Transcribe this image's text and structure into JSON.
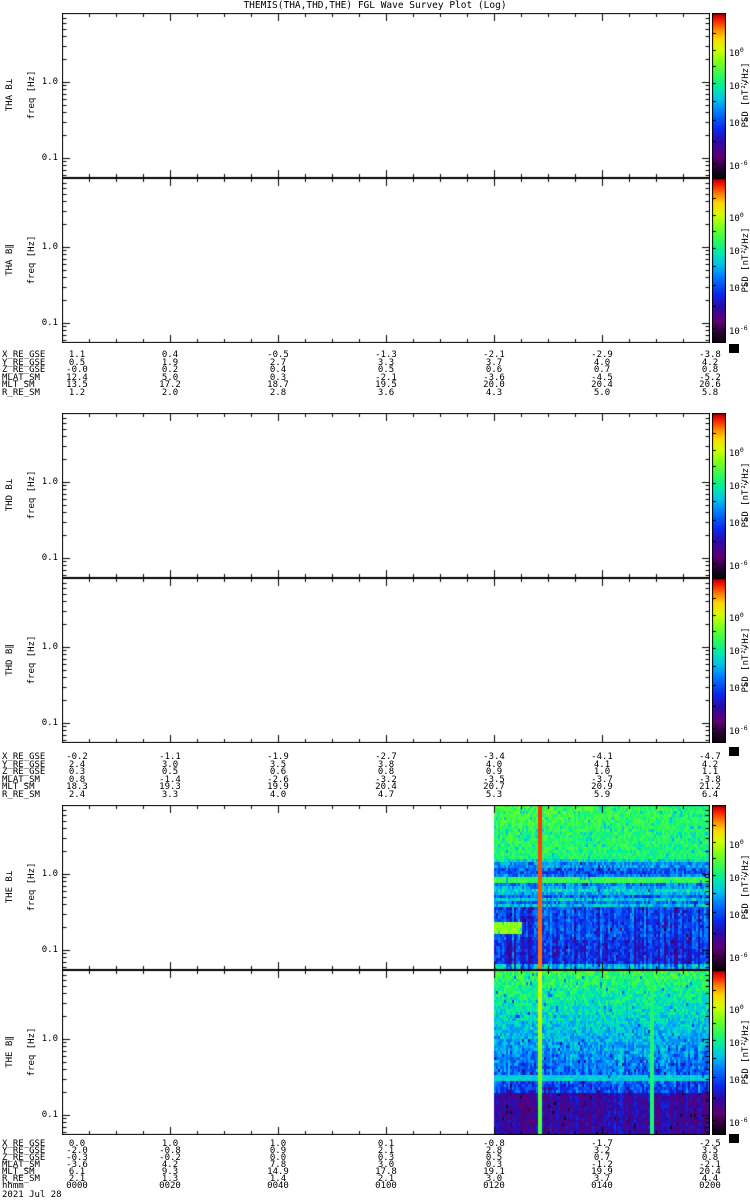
{
  "title": "THEMIS(THA,THD,THE) FGL Wave Survey Plot (Log)",
  "axis": {
    "ytick_labels": [
      "1.0",
      "0.1"
    ]
  },
  "colorbar": {
    "label": "PSD [nT²/Hz]",
    "tick_exponents": [
      "0",
      "-2",
      "-4",
      "-6"
    ]
  },
  "panels": [
    {
      "label": "THA B⊥",
      "ylabel": "freq [Hz]",
      "spectrogram": "empty"
    },
    {
      "label": "THA B∥",
      "ylabel": "freq [Hz]",
      "spectrogram": "empty"
    },
    {
      "label": "THD B⊥",
      "ylabel": "freq [Hz]",
      "spectrogram": "empty"
    },
    {
      "label": "THD B∥",
      "ylabel": "freq [Hz]",
      "spectrogram": "empty"
    },
    {
      "label": "THE B⊥",
      "ylabel": "freq [Hz]",
      "spectrogram": "bperp"
    },
    {
      "label": "THE B∥",
      "ylabel": "freq [Hz]",
      "spectrogram": "bpar"
    }
  ],
  "ephemeris": {
    "row_labels": [
      "X_RE_GSE",
      "Y_RE_GSE",
      "Z_RE_GSE",
      "MLAT_SM",
      "MLT_SM",
      "R_RE_SM"
    ],
    "time_row_label": "hhmm",
    "blocks": [
      {
        "spacecraft": "THA",
        "values": [
          [
            "1.1",
            "0.4",
            "-0.5",
            "-1.3",
            "-2.1",
            "-2.9",
            "-3.8"
          ],
          [
            "0.5",
            "1.9",
            "2.7",
            "3.3",
            "3.7",
            "4.0",
            "4.2"
          ],
          [
            "-0.0",
            "0.2",
            "0.4",
            "0.5",
            "0.6",
            "0.7",
            "0.8"
          ],
          [
            "12.4",
            "5.0",
            "0.3",
            "-2.1",
            "-3.6",
            "-4.5",
            "-5.2"
          ],
          [
            "13.5",
            "17.2",
            "18.7",
            "19.5",
            "20.0",
            "20.4",
            "20.6"
          ],
          [
            "1.2",
            "2.0",
            "2.8",
            "3.6",
            "4.3",
            "5.0",
            "5.8"
          ]
        ]
      },
      {
        "spacecraft": "THD",
        "values": [
          [
            "-0.2",
            "-1.1",
            "-1.9",
            "-2.7",
            "-3.4",
            "-4.1",
            "-4.7"
          ],
          [
            "2.4",
            "3.0",
            "3.5",
            "3.8",
            "4.0",
            "4.1",
            "4.2"
          ],
          [
            "0.3",
            "0.5",
            "0.6",
            "0.8",
            "0.9",
            "1.0",
            "1.1"
          ],
          [
            "0.8",
            "-1.4",
            "-2.6",
            "-3.2",
            "-3.5",
            "-3.7",
            "-3.8"
          ],
          [
            "18.3",
            "19.3",
            "19.9",
            "20.4",
            "20.7",
            "20.9",
            "21.2"
          ],
          [
            "2.4",
            "3.3",
            "4.0",
            "4.7",
            "5.3",
            "5.9",
            "6.4"
          ]
        ]
      },
      {
        "spacecraft": "THE",
        "values": [
          [
            "0.0",
            "1.0",
            "1.0",
            "0.1",
            "-0.8",
            "-1.7",
            "-2.5"
          ],
          [
            "-2.0",
            "-0.8",
            "0.9",
            "2.1",
            "2.8",
            "3.2",
            "3.5"
          ],
          [
            "-0.3",
            "-0.2",
            "0.0",
            "0.3",
            "0.5",
            "0.7",
            "0.8"
          ],
          [
            "-3.6",
            "4.2",
            "7.8",
            "3.0",
            "0.3",
            "-1.2",
            "-2.1"
          ],
          [
            "6.1",
            "9.3",
            "14.9",
            "17.8",
            "19.1",
            "19.9",
            "20.4"
          ],
          [
            "2.1",
            "1.3",
            "1.4",
            "2.1",
            "3.0",
            "3.7",
            "4.4"
          ]
        ],
        "hhmm": [
          "0000",
          "0020",
          "0040",
          "0100",
          "0120",
          "0140",
          "0200"
        ],
        "date": "2021 Jul 28"
      }
    ]
  },
  "chart_data": {
    "type": "heatmap",
    "title": "THEMIS(THA,THD,THE) FGL Wave Survey Plot (Log)",
    "xlabel": "hhmm (UT), 2021 Jul 28",
    "x_ticks": [
      "0000",
      "0020",
      "0040",
      "0100",
      "0120",
      "0140",
      "0200"
    ],
    "ylabel": "freq [Hz]",
    "y_scale": "log",
    "y_ticks": [
      1.0,
      0.1
    ],
    "ylim": [
      0.055,
      8
    ],
    "grid": false,
    "colorbar": {
      "label": "PSD [nT²/Hz]",
      "scale": "log",
      "tick_values": [
        1,
        0.01,
        0.0001,
        1e-06
      ],
      "range_top": 100,
      "range_bottom": 1e-07,
      "palette": "rainbow: dark-red/red top, yellow, green, cyan, blue, purple, black bottom"
    },
    "panels": [
      {
        "name": "THA B⊥",
        "coverage": "no data (blank panel)"
      },
      {
        "name": "THA B∥",
        "coverage": "no data (blank panel)"
      },
      {
        "name": "THD B⊥",
        "coverage": "no data (blank panel)"
      },
      {
        "name": "THD B∥",
        "coverage": "no data (blank panel)"
      },
      {
        "name": "THE B⊥",
        "coverage": "~0120-0200 only",
        "features": [
          "broadband noise: PSD ~1e-2 (green/cyan) above ~0.7 Hz decreasing to ~1e-4..1e-5 (blue/dark blue) at low freq",
          "intense red burst (~1 nT²/Hz) across all frequencies near 0128",
          "bright green horizontal band near 0.3 Hz",
          "yellow-green enhancement near 0.12 Hz at 0120-0125",
          "cyan/blue horizontal banding between 0.2 and 0.6 Hz, vertical striping below 0.2 Hz"
        ]
      },
      {
        "name": "THE B∥",
        "coverage": "~0120-0200 only",
        "features": [
          "noise gradient from green (~1e-2) at high freq to dark blue/purple (~1e-6) at low freq",
          "yellow burst across all frequencies near 0128",
          "green burst across all frequencies near 0150",
          "cyan horizontal band near 0.15 Hz",
          "dark purple bottom region with vertical stripes"
        ]
      }
    ],
    "ephemeris_rows": [
      "X_RE_GSE",
      "Y_RE_GSE",
      "Z_RE_GSE",
      "MLAT_SM",
      "MLT_SM",
      "R_RE_SM"
    ]
  }
}
